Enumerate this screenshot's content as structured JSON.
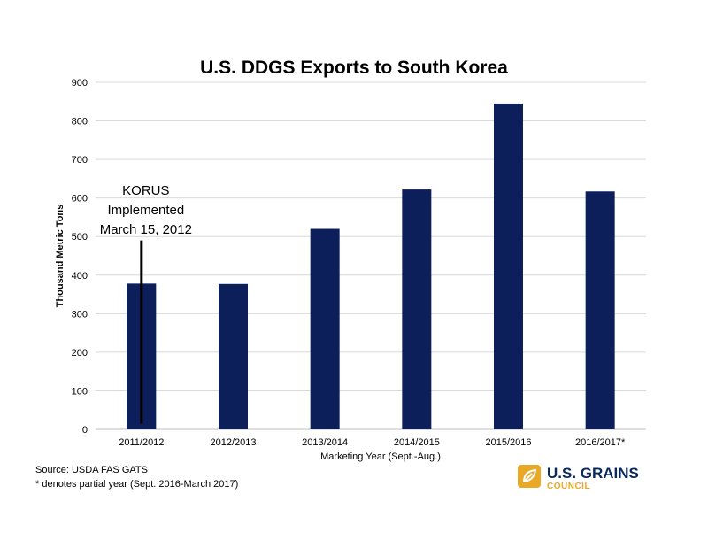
{
  "colors": {
    "bar": "#0c1f5a",
    "grid": "#d9d9d9",
    "text": "#000000",
    "logo_gold": "#e9a825",
    "logo_navy": "#0a2a5e"
  },
  "chart_data": {
    "type": "bar",
    "title": "U.S. DDGS Exports to South Korea",
    "xlabel": "Marketing Year (Sept.-Aug.)",
    "ylabel": "Thousand Metric Tons",
    "categories": [
      "2011/2012",
      "2012/2013",
      "2013/2014",
      "2014/2015",
      "2015/2016",
      "2016/2017*"
    ],
    "values": [
      378,
      377,
      520,
      622,
      845,
      617
    ],
    "ylim": [
      0,
      900
    ],
    "yticks": [
      0,
      100,
      200,
      300,
      400,
      500,
      600,
      700,
      800,
      900
    ],
    "grid": true,
    "annotation": {
      "lines": [
        "KORUS",
        "Implemented",
        "March 15, 2012"
      ],
      "category": "2011/2012",
      "marker_from": 490,
      "marker_to": 15
    }
  },
  "notes": {
    "source": "Source: USDA FAS GATS",
    "partial": "* denotes partial year (Sept. 2016-March 2017)"
  },
  "logo": {
    "line1": "U.S. GRAINS",
    "line2": "COUNCIL",
    "icon": "grain-leaf-icon"
  }
}
